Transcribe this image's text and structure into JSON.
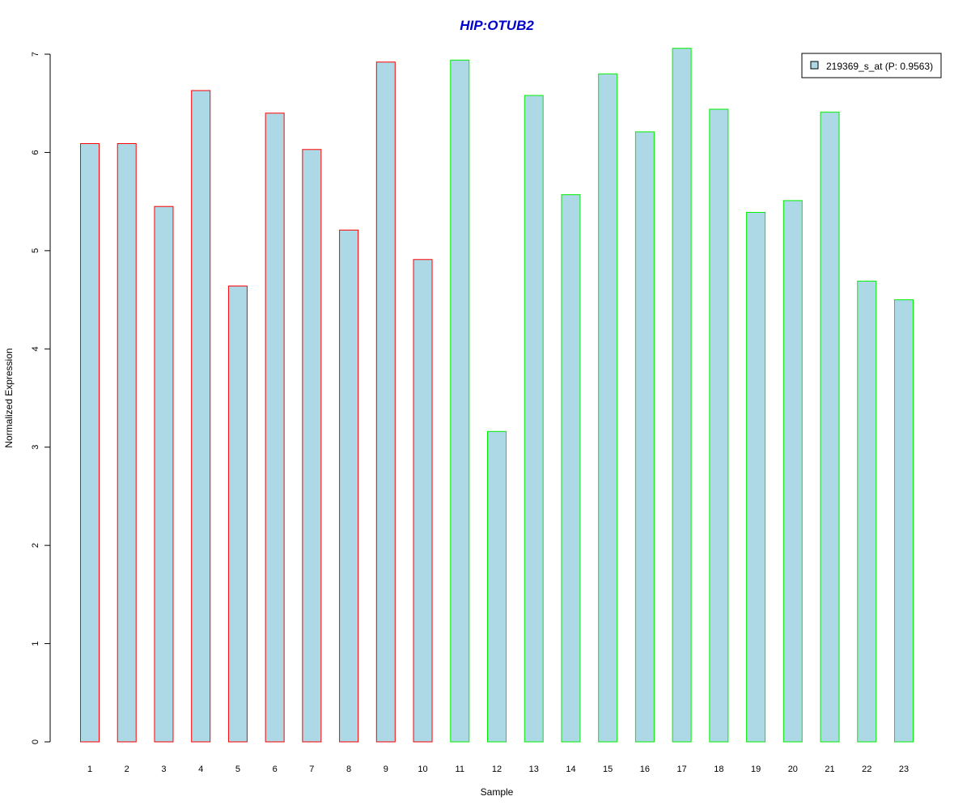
{
  "chart_data": {
    "type": "bar",
    "title": "HIP:OTUB2",
    "xlabel": "Sample",
    "ylabel": "Normalized Expression",
    "categories": [
      "1",
      "2",
      "3",
      "4",
      "5",
      "6",
      "7",
      "8",
      "9",
      "10",
      "11",
      "12",
      "13",
      "14",
      "15",
      "16",
      "17",
      "18",
      "19",
      "20",
      "21",
      "22",
      "23"
    ],
    "series": [
      {
        "name": "219369_s_at (P: 0.9563)",
        "values": [
          6.09,
          6.09,
          5.45,
          6.63,
          4.64,
          6.4,
          6.03,
          5.21,
          6.92,
          4.91,
          6.94,
          3.16,
          6.58,
          5.57,
          6.8,
          6.21,
          7.06,
          6.44,
          5.39,
          5.51,
          6.41,
          4.69,
          4.5
        ]
      }
    ],
    "groups": [
      {
        "samples": [
          1,
          2,
          3,
          4,
          5,
          6,
          7,
          8,
          9,
          10
        ],
        "border_color": "#ff0000"
      },
      {
        "samples": [
          11,
          12,
          13,
          14,
          15,
          16,
          17,
          18,
          19,
          20,
          21,
          22,
          23
        ],
        "border_color": "#00ee00"
      }
    ],
    "ylim": [
      0,
      7
    ],
    "yticks": [
      0,
      1,
      2,
      3,
      4,
      5,
      6,
      7
    ],
    "grid": false,
    "legend_position": "top-right",
    "colors": {
      "bar_fill": "#add8e6",
      "title": "#0000cc",
      "legend_border": "#000000"
    }
  }
}
